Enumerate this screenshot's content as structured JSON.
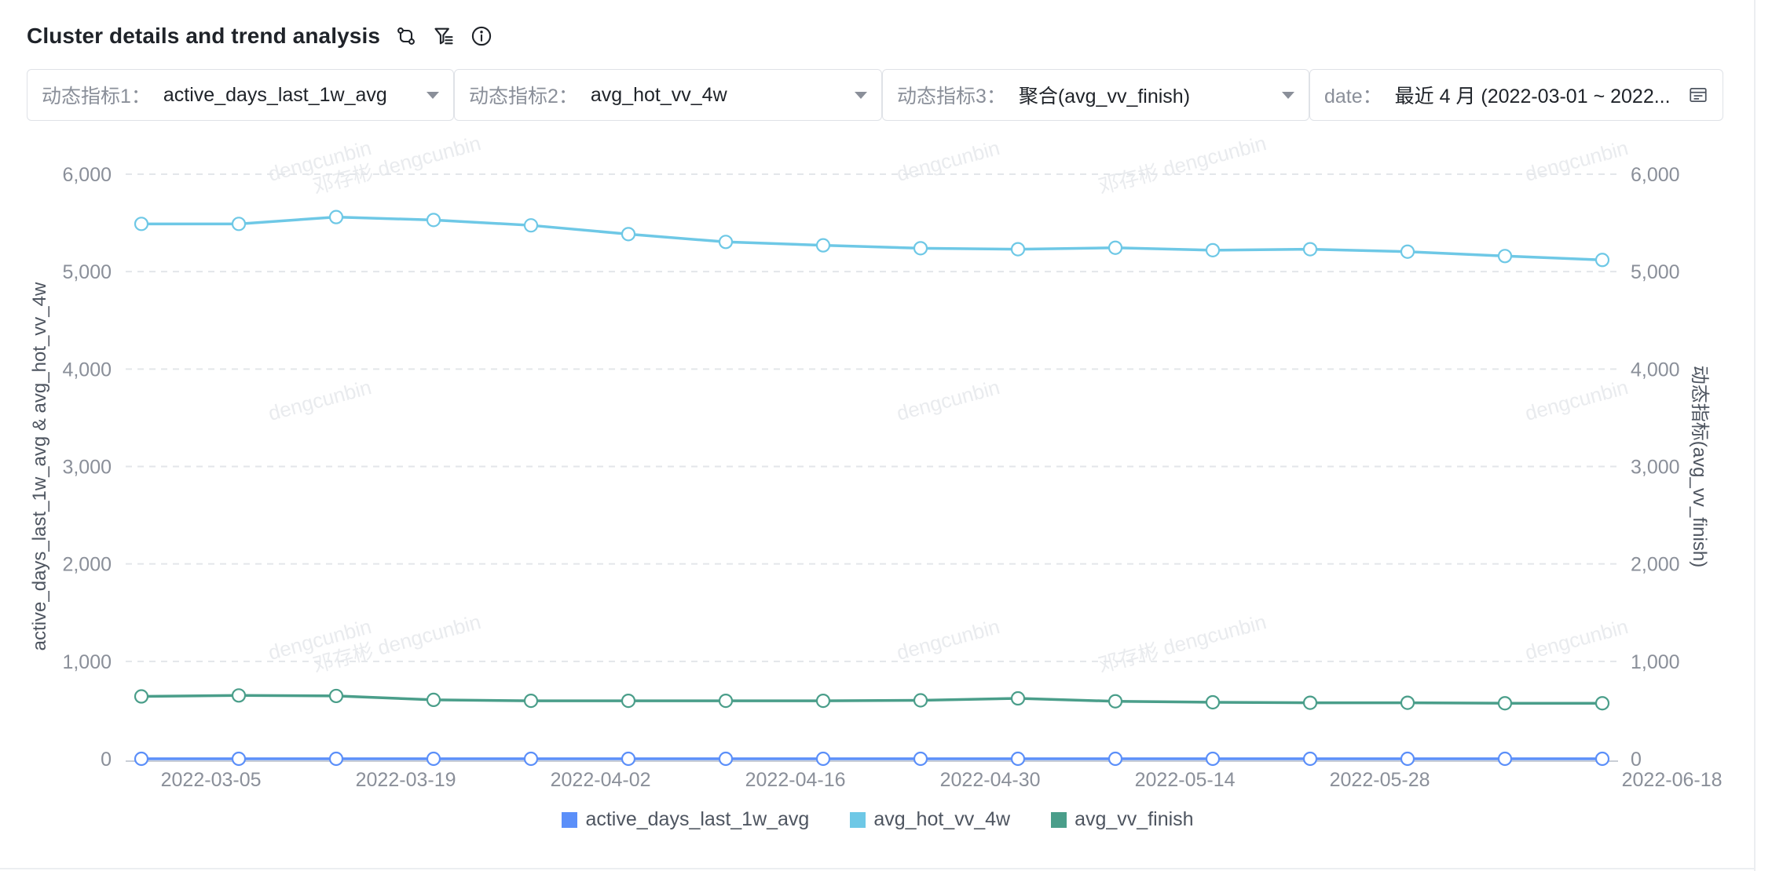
{
  "header": {
    "title": "Cluster details and trend analysis"
  },
  "filters": [
    {
      "label": "动态指标1：",
      "value": "active_days_last_1w_avg"
    },
    {
      "label": "动态指标2：",
      "value": "avg_hot_vv_4w"
    },
    {
      "label": "动态指标3：",
      "value": "聚合(avg_vv_finish)"
    },
    {
      "label": "date：",
      "value": "最近 4 月 (2022-03-01 ~ 2022..."
    }
  ],
  "watermark": [
    "dengcunbin",
    "邓存彬 dengcunbin"
  ],
  "chart_data": {
    "type": "line",
    "x": [
      "2022-02-28",
      "2022-03-07",
      "2022-03-14",
      "2022-03-21",
      "2022-03-28",
      "2022-04-04",
      "2022-04-11",
      "2022-04-18",
      "2022-04-25",
      "2022-05-02",
      "2022-05-09",
      "2022-05-16",
      "2022-05-23",
      "2022-05-30",
      "2022-06-06",
      "2022-06-13"
    ],
    "x_tick_labels": [
      "2022-03-05",
      "2022-03-19",
      "2022-04-02",
      "2022-04-16",
      "2022-04-30",
      "2022-05-14",
      "2022-05-28",
      "2022-06-18"
    ],
    "series": [
      {
        "name": "active_days_last_1w_avg",
        "axis": "left",
        "color": "#5b8ff9",
        "values": [
          0,
          0,
          0,
          0,
          0,
          0,
          0,
          0,
          0,
          0,
          0,
          0,
          0,
          0,
          0,
          0
        ]
      },
      {
        "name": "avg_hot_vv_4w",
        "axis": "left",
        "color": "#6ec8e6",
        "values": [
          5490,
          5490,
          5560,
          5530,
          5475,
          5385,
          5305,
          5270,
          5240,
          5230,
          5245,
          5220,
          5230,
          5205,
          5160,
          5120
        ]
      },
      {
        "name": "avg_vv_finish",
        "axis": "right",
        "color": "#4a9e8a",
        "values": [
          640,
          650,
          645,
          605,
          595,
          595,
          595,
          595,
          600,
          620,
          590,
          580,
          575,
          575,
          570,
          570
        ]
      }
    ],
    "ylabel": "active_days_last_1w_avg & avg_hot_vv_4w",
    "ylabel_right": "动态指标(avg_vv_finish)",
    "ylim": [
      0,
      6000
    ],
    "ylim_right": [
      0,
      6000
    ],
    "y_ticks": [
      "0",
      "1,000",
      "2,000",
      "3,000",
      "4,000",
      "5,000",
      "6,000"
    ],
    "grid": true,
    "legend": "bottom-center"
  }
}
